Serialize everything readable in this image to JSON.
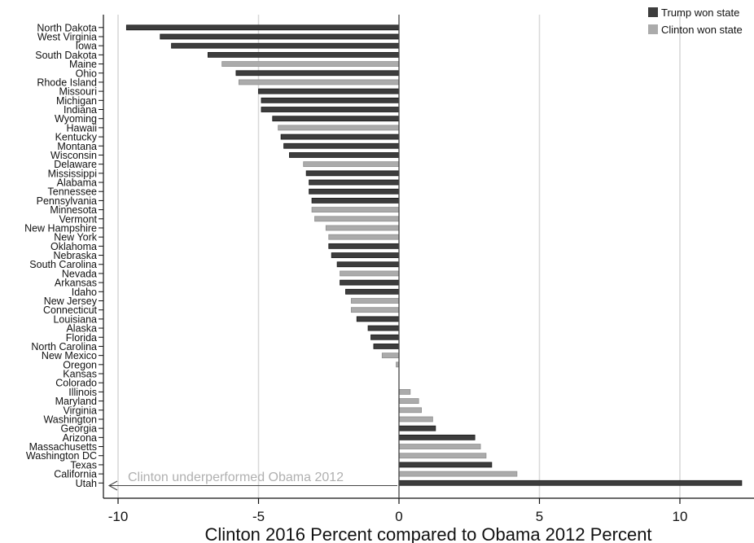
{
  "colors": {
    "trump": "#3d3d3d",
    "clinton": "#ababab",
    "grid": "#d9d9d9",
    "annotation": "#b0b0b0"
  },
  "chart_data": {
    "type": "bar",
    "orientation": "horizontal",
    "title": "",
    "xlabel": "Clinton 2016 Percent compared to Obama 2012 Percent",
    "ylabel": "",
    "xlim": [
      -10.5,
      12.4
    ],
    "xticks": [
      -10,
      -5,
      0,
      5,
      10
    ],
    "xtick_labels": [
      "-10",
      "-5",
      "0",
      "5",
      "10"
    ],
    "grid": true,
    "legend_position": "top-right",
    "legend": [
      {
        "name": "Trump won state",
        "color_key": "trump"
      },
      {
        "name": "Clinton won state",
        "color_key": "clinton"
      }
    ],
    "annotation": "Clinton underperformed Obama 2012",
    "categories": [
      "North Dakota",
      "West Virginia",
      "Iowa",
      "South Dakota",
      "Maine",
      "Ohio",
      "Rhode Island",
      "Missouri",
      "Michigan",
      "Indiana",
      "Wyoming",
      "Hawaii",
      "Kentucky",
      "Montana",
      "Wisconsin",
      "Delaware",
      "Mississippi",
      "Alabama",
      "Tennessee",
      "Pennsylvania",
      "Minnesota",
      "Vermont",
      "New Hampshire",
      "New York",
      "Oklahoma",
      "Nebraska",
      "South Carolina",
      "Nevada",
      "Arkansas",
      "Idaho",
      "New Jersey",
      "Connecticut",
      "Louisiana",
      "Alaska",
      "Florida",
      "North Carolina",
      "New Mexico",
      "Oregon",
      "Kansas",
      "Colorado",
      "Illinois",
      "Maryland",
      "Virginia",
      "Washington",
      "Georgia",
      "Arizona",
      "Massachusetts",
      "Washington DC",
      "Texas",
      "California",
      "Utah"
    ],
    "values": [
      -9.7,
      -8.5,
      -8.1,
      -6.8,
      -6.3,
      -5.8,
      -5.7,
      -5.0,
      -4.9,
      -4.9,
      -4.5,
      -4.3,
      -4.2,
      -4.1,
      -3.9,
      -3.4,
      -3.3,
      -3.2,
      -3.2,
      -3.1,
      -3.1,
      -3.0,
      -2.6,
      -2.5,
      -2.5,
      -2.4,
      -2.2,
      -2.1,
      -2.1,
      -1.9,
      -1.7,
      -1.7,
      -1.5,
      -1.1,
      -1.0,
      -0.9,
      -0.6,
      -0.1,
      0.0,
      0.0,
      0.4,
      0.7,
      0.8,
      1.2,
      1.3,
      2.7,
      2.9,
      3.1,
      3.3,
      4.2,
      12.2
    ],
    "winner": [
      "trump",
      "trump",
      "trump",
      "trump",
      "clinton",
      "trump",
      "clinton",
      "trump",
      "trump",
      "trump",
      "trump",
      "clinton",
      "trump",
      "trump",
      "trump",
      "clinton",
      "trump",
      "trump",
      "trump",
      "trump",
      "clinton",
      "clinton",
      "clinton",
      "clinton",
      "trump",
      "trump",
      "trump",
      "clinton",
      "trump",
      "trump",
      "clinton",
      "clinton",
      "trump",
      "trump",
      "trump",
      "trump",
      "clinton",
      "clinton",
      "trump",
      "clinton",
      "clinton",
      "clinton",
      "clinton",
      "clinton",
      "trump",
      "trump",
      "clinton",
      "clinton",
      "trump",
      "clinton",
      "trump"
    ]
  }
}
